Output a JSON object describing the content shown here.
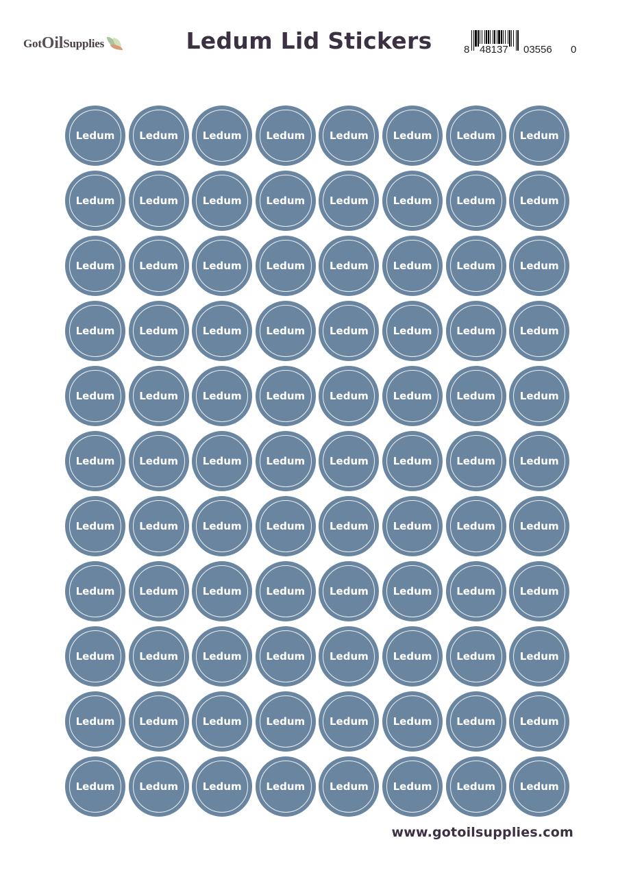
{
  "header": {
    "logo_text_got": "Got",
    "logo_text_oil": "Oil",
    "logo_text_supplies": "Supplies",
    "title": "Ledum Lid Stickers",
    "barcode": {
      "digit_left": "8",
      "group1": "48137",
      "group2": "03556",
      "digit_right": "0"
    }
  },
  "stickers": {
    "label": "Ledum",
    "rows": 11,
    "columns": 8,
    "fill_color": "#6985a0",
    "text_color": "#ffffff"
  },
  "footer": {
    "url": "www.gotoilsupplies.com"
  }
}
